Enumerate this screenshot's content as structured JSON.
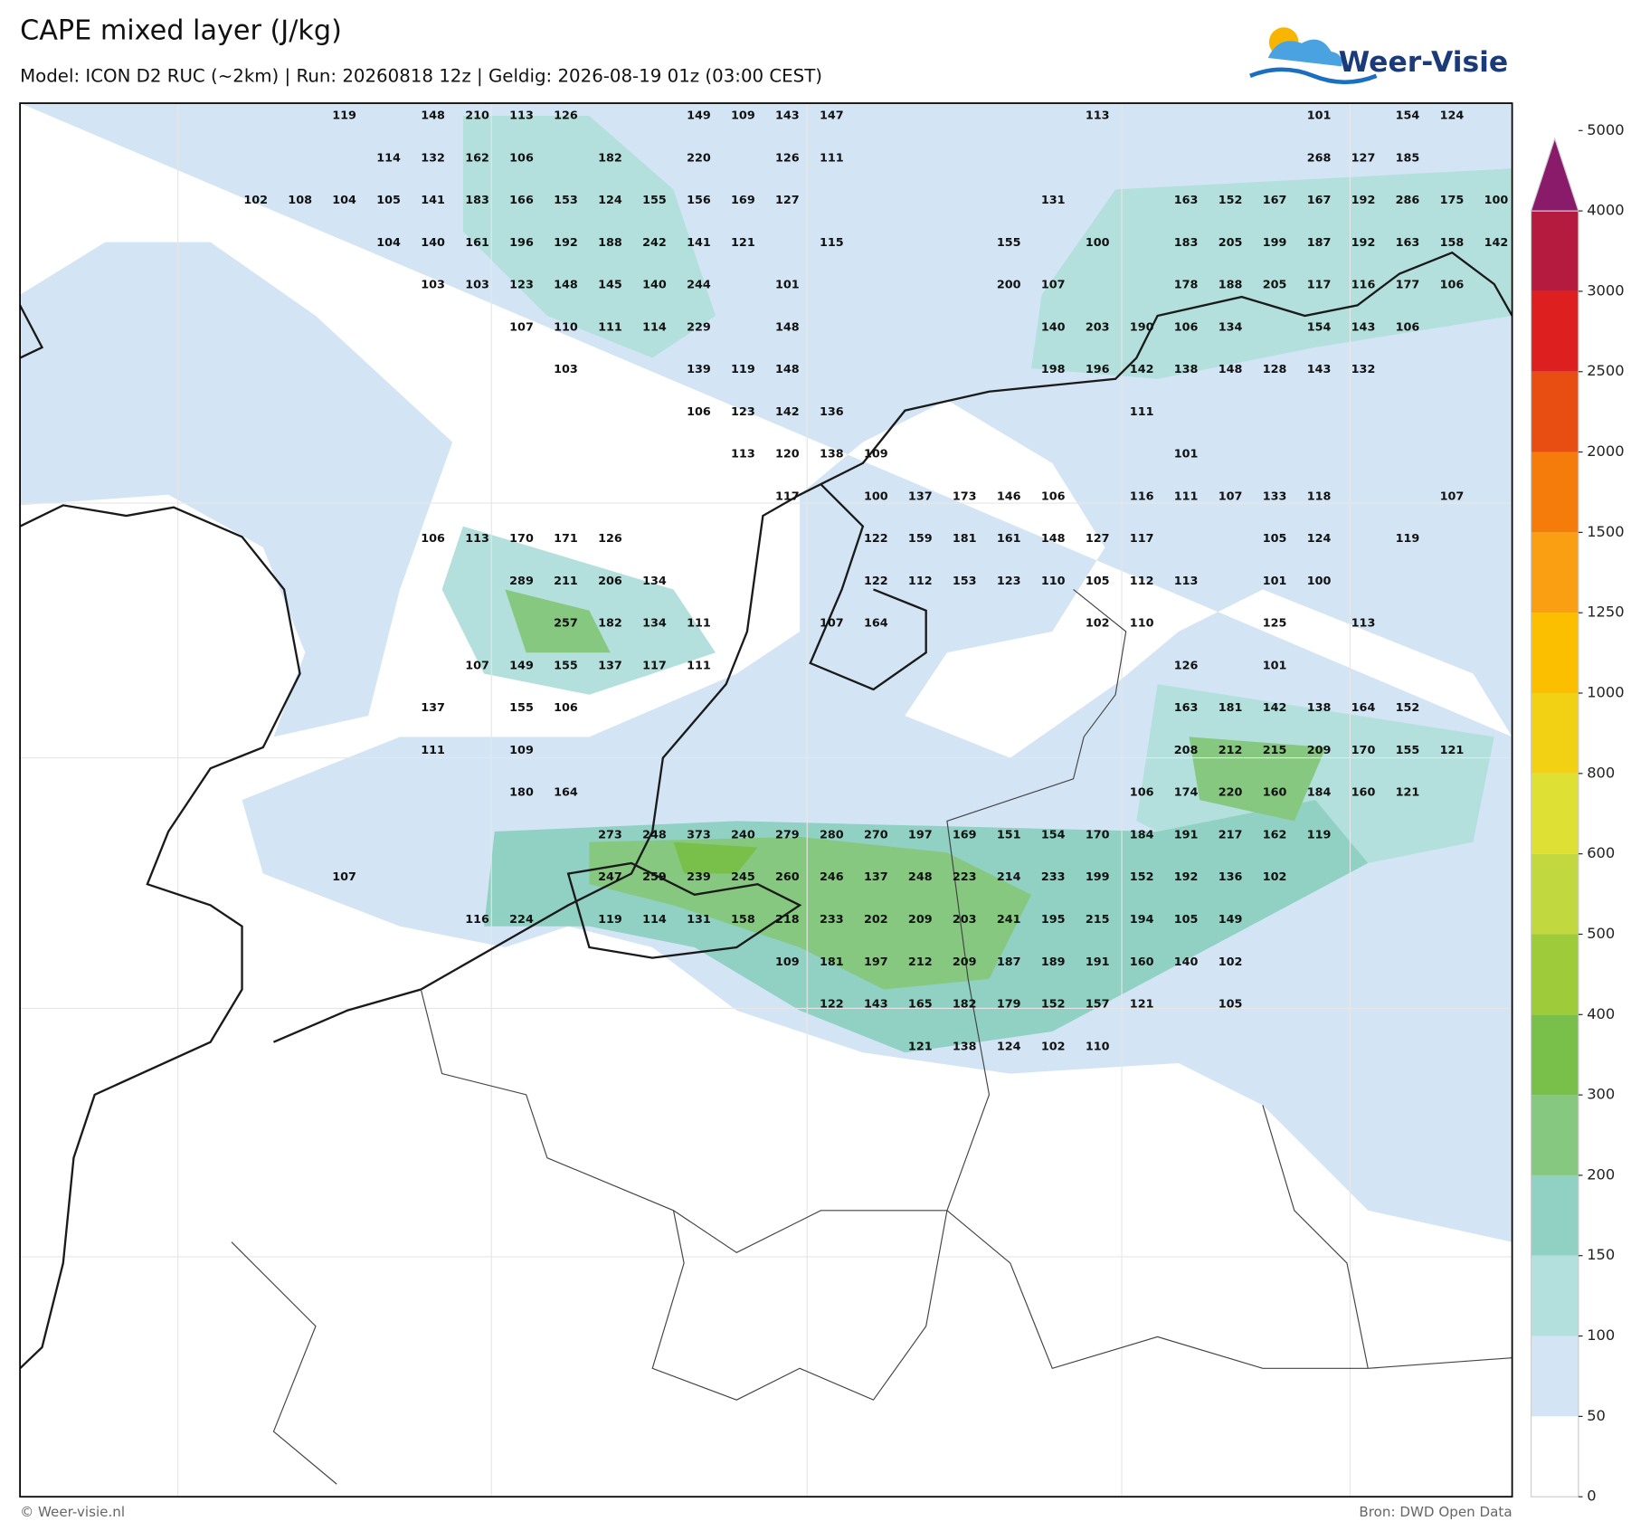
{
  "header": {
    "title": "CAPE mixed layer (J/kg)",
    "subtitle": "Model: ICON D2 RUC (~2km)  |  Run: 20260818 12z  |  Geldig: 2026-08-19 01z (03:00 CEST)"
  },
  "logo": {
    "text": "Weer-Visie"
  },
  "colorbar": {
    "levels": [
      0,
      50,
      100,
      150,
      200,
      300,
      400,
      500,
      600,
      800,
      1000,
      1250,
      1500,
      2000,
      2500,
      3000,
      4000,
      5000
    ],
    "colors": [
      "#ffffff",
      "#d3e5f5",
      "#b3e0dc",
      "#90d1c3",
      "#86c880",
      "#78c04a",
      "#9ecb3a",
      "#c2d83f",
      "#dfe034",
      "#f2d114",
      "#fbbf00",
      "#fa9e12",
      "#f57c0a",
      "#e84e12",
      "#dd1f1f",
      "#b51b3e",
      "#8a1a6a"
    ]
  },
  "labels": {
    "rows": [
      [
        null,
        null,
        119,
        null,
        148,
        210,
        113,
        126,
        null,
        null,
        149,
        109,
        143,
        147,
        null,
        null,
        null,
        null,
        null,
        113,
        null,
        null,
        null,
        null,
        101,
        null,
        154,
        124,
        null
      ],
      [
        null,
        null,
        null,
        114,
        132,
        162,
        106,
        null,
        182,
        null,
        220,
        null,
        126,
        111,
        null,
        null,
        null,
        null,
        null,
        null,
        null,
        null,
        null,
        null,
        268,
        127,
        185,
        null,
        null
      ],
      [
        102,
        108,
        104,
        105,
        141,
        183,
        166,
        153,
        124,
        155,
        156,
        169,
        127,
        null,
        null,
        null,
        null,
        null,
        131,
        null,
        null,
        163,
        152,
        167,
        167,
        192,
        286,
        175,
        100
      ],
      [
        null,
        null,
        null,
        104,
        140,
        161,
        196,
        192,
        188,
        242,
        141,
        121,
        null,
        115,
        null,
        null,
        null,
        155,
        null,
        100,
        null,
        183,
        205,
        199,
        187,
        192,
        163,
        158,
        142
      ],
      [
        null,
        null,
        null,
        null,
        103,
        103,
        123,
        148,
        145,
        140,
        244,
        null,
        101,
        null,
        null,
        null,
        null,
        200,
        107,
        null,
        null,
        178,
        188,
        205,
        117,
        116,
        177,
        106,
        null
      ],
      [
        null,
        null,
        null,
        null,
        null,
        null,
        107,
        110,
        111,
        114,
        229,
        null,
        148,
        null,
        null,
        null,
        null,
        null,
        140,
        203,
        190,
        106,
        134,
        null,
        154,
        143,
        106,
        null,
        null
      ],
      [
        null,
        null,
        null,
        null,
        null,
        null,
        null,
        103,
        null,
        null,
        139,
        119,
        148,
        null,
        null,
        null,
        null,
        null,
        198,
        196,
        142,
        138,
        148,
        128,
        143,
        132,
        null,
        null,
        null
      ],
      [
        null,
        null,
        null,
        null,
        null,
        null,
        null,
        null,
        null,
        null,
        106,
        123,
        142,
        136,
        null,
        null,
        null,
        null,
        null,
        null,
        111,
        null,
        null,
        null,
        null,
        null,
        null,
        null,
        null
      ],
      [
        null,
        null,
        null,
        null,
        null,
        null,
        null,
        null,
        null,
        null,
        null,
        113,
        120,
        138,
        109,
        null,
        null,
        null,
        null,
        null,
        null,
        101,
        null,
        null,
        null,
        null,
        null,
        null,
        null
      ],
      [
        null,
        null,
        null,
        null,
        null,
        null,
        null,
        null,
        null,
        null,
        null,
        null,
        117,
        null,
        100,
        137,
        173,
        146,
        106,
        null,
        116,
        111,
        107,
        133,
        118,
        null,
        null,
        107,
        null
      ],
      [
        null,
        null,
        null,
        null,
        106,
        113,
        170,
        171,
        126,
        null,
        null,
        null,
        null,
        null,
        122,
        159,
        181,
        161,
        148,
        127,
        117,
        null,
        null,
        105,
        124,
        null,
        119,
        null,
        null
      ],
      [
        null,
        null,
        null,
        null,
        null,
        null,
        289,
        211,
        206,
        134,
        null,
        null,
        null,
        null,
        122,
        112,
        153,
        123,
        110,
        105,
        112,
        113,
        null,
        101,
        100,
        null,
        null,
        null,
        null
      ],
      [
        null,
        null,
        null,
        null,
        null,
        null,
        null,
        257,
        182,
        134,
        111,
        null,
        null,
        107,
        164,
        null,
        null,
        null,
        null,
        102,
        110,
        null,
        null,
        125,
        null,
        113,
        null,
        null,
        null
      ],
      [
        null,
        null,
        null,
        null,
        null,
        107,
        149,
        155,
        137,
        117,
        111,
        null,
        null,
        null,
        null,
        null,
        null,
        null,
        null,
        null,
        null,
        126,
        null,
        101,
        null,
        null,
        null,
        null,
        null
      ],
      [
        null,
        null,
        null,
        null,
        137,
        null,
        155,
        106,
        null,
        null,
        null,
        null,
        null,
        null,
        null,
        null,
        null,
        null,
        null,
        null,
        null,
        163,
        181,
        142,
        138,
        164,
        152,
        null,
        null
      ],
      [
        null,
        null,
        null,
        null,
        111,
        null,
        109,
        null,
        null,
        null,
        null,
        null,
        null,
        null,
        null,
        null,
        null,
        null,
        null,
        null,
        null,
        208,
        212,
        215,
        209,
        170,
        155,
        121,
        null
      ],
      [
        null,
        null,
        null,
        null,
        null,
        null,
        180,
        164,
        null,
        null,
        null,
        null,
        null,
        null,
        null,
        null,
        null,
        null,
        null,
        null,
        106,
        174,
        220,
        160,
        184,
        160,
        121,
        null,
        null
      ],
      [
        null,
        null,
        null,
        null,
        null,
        null,
        null,
        null,
        273,
        248,
        373,
        240,
        279,
        280,
        270,
        197,
        169,
        151,
        154,
        170,
        184,
        191,
        217,
        162,
        119,
        null,
        null,
        null,
        null
      ],
      [
        null,
        null,
        107,
        null,
        null,
        null,
        null,
        null,
        247,
        259,
        239,
        245,
        260,
        246,
        137,
        248,
        223,
        214,
        233,
        199,
        152,
        192,
        136,
        102,
        null,
        null,
        null,
        null,
        null
      ],
      [
        null,
        null,
        null,
        null,
        null,
        116,
        224,
        null,
        119,
        114,
        131,
        158,
        218,
        233,
        202,
        209,
        203,
        241,
        195,
        215,
        194,
        105,
        149,
        null,
        null,
        null,
        null,
        null,
        null
      ],
      [
        null,
        null,
        null,
        null,
        null,
        null,
        null,
        null,
        null,
        null,
        null,
        null,
        109,
        181,
        197,
        212,
        209,
        187,
        189,
        191,
        160,
        140,
        102,
        null,
        null,
        null,
        null,
        null,
        null
      ],
      [
        null,
        null,
        null,
        null,
        null,
        null,
        null,
        null,
        null,
        null,
        null,
        null,
        null,
        122,
        143,
        165,
        182,
        179,
        152,
        157,
        121,
        null,
        105,
        null,
        null,
        null,
        null,
        null,
        null
      ],
      [
        null,
        null,
        null,
        null,
        null,
        null,
        null,
        null,
        null,
        null,
        null,
        null,
        null,
        null,
        null,
        121,
        138,
        124,
        102,
        110,
        null,
        null,
        null,
        null,
        null,
        null,
        null,
        null,
        null
      ]
    ]
  },
  "footer": {
    "copyright": "© Weer-visie.nl",
    "source": "Bron: DWD Open Data"
  }
}
